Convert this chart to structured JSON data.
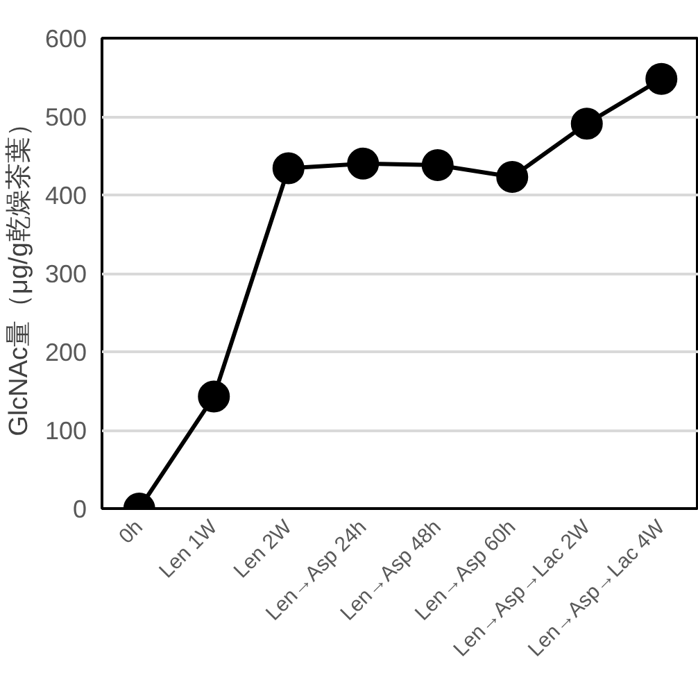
{
  "chart_data": {
    "type": "line",
    "ylabel": "GlcNAc量（μg/g乾燥茶葉）",
    "categories": [
      "0h",
      "Len 1W",
      "Len 2W",
      "Len→Asp 24h",
      "Len→Asp 48h",
      "Len→Asp 60h",
      "Len→Asp→Lac 2W",
      "Len→Asp→Lac 4W"
    ],
    "series": [
      {
        "color": "#000000",
        "values": [
          0,
          143,
          434,
          440,
          438,
          423,
          491,
          548
        ]
      }
    ],
    "ylim": [
      0,
      600
    ],
    "yticks": [
      0,
      100,
      200,
      300,
      400,
      500,
      600
    ],
    "grid": "y",
    "marker": "circle",
    "line_style": "solid"
  }
}
